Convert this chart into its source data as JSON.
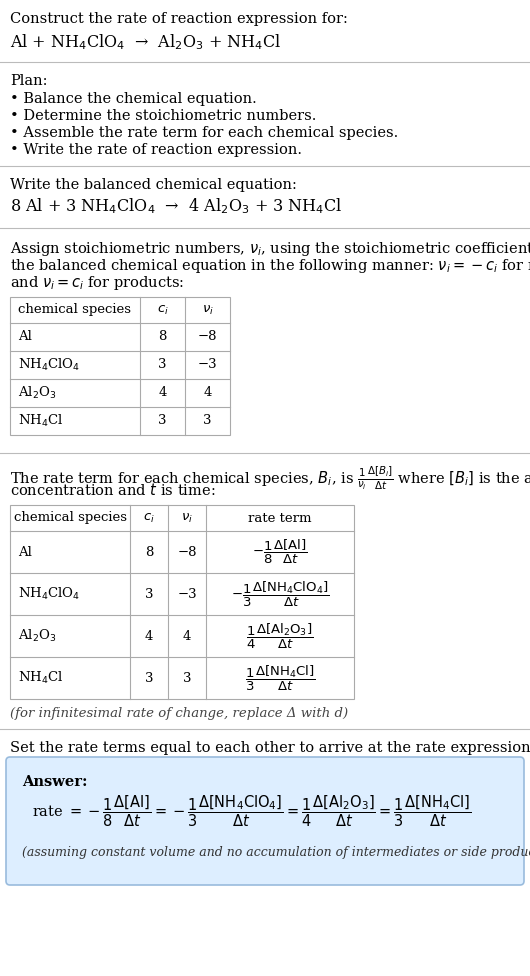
{
  "bg_color": "#ffffff",
  "text_color": "#000000",
  "answer_bg": "#daeaf7",
  "title_text": "Construct the rate of reaction expression for:",
  "reaction_unbalanced": "Al + NH$_4$ClO$_4$  →  Al$_2$O$_3$ + NH$_4$Cl",
  "plan_header": "Plan:",
  "plan_items": [
    "• Balance the chemical equation.",
    "• Determine the stoichiometric numbers.",
    "• Assemble the rate term for each chemical species.",
    "• Write the rate of reaction expression."
  ],
  "balanced_header": "Write the balanced chemical equation:",
  "balanced_eq": "8 Al + 3 NH$_4$ClO$_4$  →  4 Al$_2$O$_3$ + 3 NH$_4$Cl",
  "stoich_intro": "Assign stoichiometric numbers, $\\nu_i$, using the stoichiometric coefficients, $c_i$, from the balanced chemical equation in the following manner: $\\nu_i = -c_i$ for reactants and $\\nu_i = c_i$ for products:",
  "table1_headers": [
    "chemical species",
    "$c_i$",
    "$\\nu_i$"
  ],
  "table1_rows": [
    [
      "Al",
      "8",
      "−8"
    ],
    [
      "NH$_4$ClO$_4$",
      "3",
      "−3"
    ],
    [
      "Al$_2$O$_3$",
      "4",
      "4"
    ],
    [
      "NH$_4$Cl",
      "3",
      "3"
    ]
  ],
  "rate_intro": "The rate term for each chemical species, $B_i$, is $\\dfrac{1}{\\nu_i}\\dfrac{\\Delta[B_i]}{\\Delta t}$ where $[B_i]$ is the amount concentration and $t$ is time:",
  "table2_headers": [
    "chemical species",
    "$c_i$",
    "$\\nu_i$",
    "rate term"
  ],
  "table2_rows": [
    [
      "Al",
      "8",
      "−8",
      "$-\\dfrac{1}{8}\\dfrac{\\Delta[\\mathrm{Al}]}{\\Delta t}$"
    ],
    [
      "NH$_4$ClO$_4$",
      "3",
      "−3",
      "$-\\dfrac{1}{3}\\dfrac{\\Delta[\\mathrm{NH_4ClO_4}]}{\\Delta t}$"
    ],
    [
      "Al$_2$O$_3$",
      "4",
      "4",
      "$\\dfrac{1}{4}\\dfrac{\\Delta[\\mathrm{Al_2O_3}]}{\\Delta t}$"
    ],
    [
      "NH$_4$Cl",
      "3",
      "3",
      "$\\dfrac{1}{3}\\dfrac{\\Delta[\\mathrm{NH_4Cl}]}{\\Delta t}$"
    ]
  ],
  "infinitesimal_note": "(for infinitesimal rate of change, replace Δ with d)",
  "set_rate_header": "Set the rate terms equal to each other to arrive at the rate expression:",
  "answer_label": "Answer:",
  "rate_expression": "rate $= -\\dfrac{1}{8}\\dfrac{\\Delta[\\mathrm{Al}]}{\\Delta t} = -\\dfrac{1}{3}\\dfrac{\\Delta[\\mathrm{NH_4ClO_4}]}{\\Delta t} = \\dfrac{1}{4}\\dfrac{\\Delta[\\mathrm{Al_2O_3}]}{\\Delta t} = \\dfrac{1}{3}\\dfrac{\\Delta[\\mathrm{NH_4Cl}]}{\\Delta t}$",
  "assumption_note": "(assuming constant volume and no accumulation of intermediates or side products)"
}
